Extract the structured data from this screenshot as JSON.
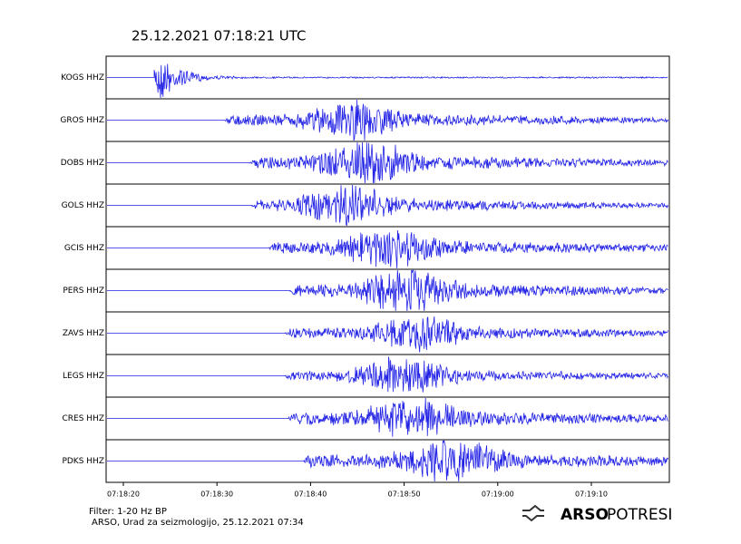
{
  "chart_data": {
    "type": "seismogram",
    "title": "25.12.2021  07:18:21 UTC",
    "stations": [
      "KOGS HHZ",
      "GROS HHZ",
      "DOBS HHZ",
      "GOLS HHZ",
      "GCIS HHZ",
      "PERS HHZ",
      "ZAVS HHZ",
      "LEGS HHZ",
      "CRES HHZ",
      "PDKS HHZ"
    ],
    "xticks": [
      "07:18:20",
      "07:18:30",
      "07:18:40",
      "07:18:50",
      "07:19:00",
      "07:19:10"
    ],
    "color": "#2323e6",
    "notes": [
      "Filter: 1-20 Hz BP",
      "ARSO, Urad za seizmologijo, 25.12.2021  07:34"
    ],
    "logo": [
      "ARSO",
      "POTRESI"
    ]
  }
}
